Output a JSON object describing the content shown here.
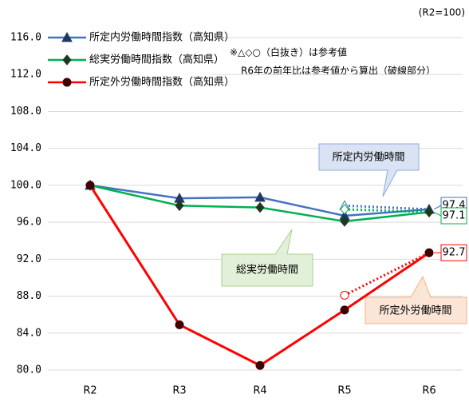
{
  "chart_data": {
    "type": "line",
    "base_note": "(R2=100)",
    "annotations": [
      "※△◇○（白抜き）は参考値",
      "R6年の前年比は参考値から算出（破線部分）"
    ],
    "callouts": [
      "所定内労働時間",
      "総実労働時間",
      "所定外労働時間"
    ],
    "categories": [
      "R2",
      "R3",
      "R4",
      "R5",
      "R6"
    ],
    "series": [
      {
        "name": "所定内労働時間指数（高知県）",
        "color": "#4472c4",
        "marker": "triangle",
        "values": [
          100,
          98.6,
          98.7,
          96.7,
          97.4
        ],
        "reference_values": [
          null,
          null,
          null,
          97.8,
          null
        ]
      },
      {
        "name": "総実労働時間指数（高知県）",
        "color": "#00b050",
        "marker": "diamond",
        "values": [
          100,
          97.8,
          97.6,
          96.1,
          97.1
        ],
        "reference_values": [
          null,
          null,
          null,
          97.4,
          null
        ]
      },
      {
        "name": "所定外労働時間指数（高知県）",
        "color": "#ff0000",
        "marker": "circle",
        "values": [
          100,
          84.9,
          80.5,
          86.5,
          92.7
        ],
        "reference_values": [
          null,
          null,
          null,
          88.1,
          null
        ]
      }
    ],
    "ylim": [
      80,
      116
    ],
    "yticks": [
      {
        "value": 80,
        "label": "80.0"
      },
      {
        "value": 84,
        "label": "84.0"
      },
      {
        "value": 88,
        "label": "88.0"
      },
      {
        "value": 92,
        "label": "92.0"
      },
      {
        "value": 96,
        "label": "96.0"
      },
      {
        "value": 100,
        "label": "100.0"
      },
      {
        "value": 104,
        "label": "104.0"
      },
      {
        "value": 108,
        "label": "108.0"
      },
      {
        "value": 112,
        "label": "112.0"
      },
      {
        "value": 116,
        "label": "116.0"
      }
    ],
    "grid": true,
    "legend": "upper left"
  }
}
